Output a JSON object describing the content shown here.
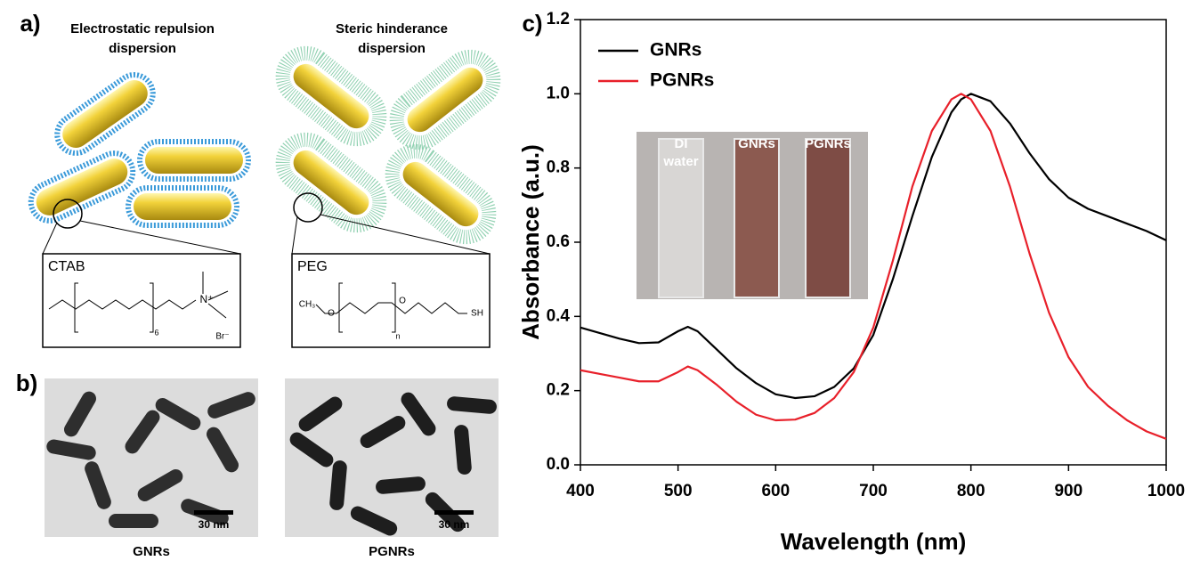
{
  "panel_labels": {
    "a": "a)",
    "b": "b)",
    "c": "c)"
  },
  "panel_a": {
    "left": {
      "title_lines": [
        "Electrostatic repulsion",
        "dispersion"
      ],
      "box_label": "CTAB",
      "structure": {
        "cation": "N⁺",
        "n": "6",
        "ion": "Br⁻"
      }
    },
    "right": {
      "title_lines": [
        "Steric hinderance",
        "dispersion"
      ],
      "box_label": "PEG",
      "structure": {
        "start": "CH₃",
        "o1": "O",
        "o2": "O",
        "n": "n",
        "end": "SH"
      }
    }
  },
  "panel_b": {
    "images": [
      {
        "label": "GNRs",
        "scale_bar": "30 nm"
      },
      {
        "label": "PGNRs",
        "scale_bar": "30 nm"
      }
    ]
  },
  "chart_data": {
    "type": "line",
    "xlabel": "Wavelength (nm)",
    "ylabel": "Absorbance (a.u.)",
    "x": [
      400,
      420,
      440,
      460,
      480,
      500,
      510,
      520,
      540,
      560,
      580,
      600,
      620,
      640,
      660,
      680,
      700,
      720,
      740,
      760,
      780,
      790,
      800,
      820,
      840,
      860,
      880,
      900,
      920,
      940,
      960,
      980,
      1000
    ],
    "series": [
      {
        "name": "GNRs",
        "color": "#000000",
        "values": [
          0.37,
          0.355,
          0.34,
          0.328,
          0.33,
          0.36,
          0.372,
          0.36,
          0.31,
          0.26,
          0.22,
          0.19,
          0.18,
          0.185,
          0.21,
          0.26,
          0.35,
          0.5,
          0.67,
          0.83,
          0.95,
          0.985,
          1.0,
          0.98,
          0.92,
          0.84,
          0.77,
          0.72,
          0.69,
          0.67,
          0.65,
          0.63,
          0.605
        ]
      },
      {
        "name": "PGNRs",
        "color": "#e8202a",
        "values": [
          0.255,
          0.245,
          0.235,
          0.225,
          0.225,
          0.25,
          0.265,
          0.255,
          0.215,
          0.17,
          0.135,
          0.12,
          0.122,
          0.14,
          0.18,
          0.25,
          0.37,
          0.55,
          0.75,
          0.9,
          0.985,
          1.0,
          0.985,
          0.9,
          0.75,
          0.57,
          0.41,
          0.29,
          0.21,
          0.16,
          0.12,
          0.09,
          0.07
        ]
      }
    ],
    "xlim": [
      400,
      1000
    ],
    "xticks": [
      400,
      500,
      600,
      700,
      800,
      900,
      1000
    ],
    "ylim": [
      0,
      1.2
    ],
    "yticks": [
      {
        "value": 0,
        "label": "0.0"
      },
      0.2,
      0.4,
      0.6,
      0.8,
      {
        "value": 1,
        "label": "1.0"
      },
      1.2
    ],
    "legend": "upper-left",
    "inset_labels": [
      [
        "DI",
        "water"
      ],
      [
        "GNRs"
      ],
      [
        "PGNRs"
      ]
    ]
  }
}
